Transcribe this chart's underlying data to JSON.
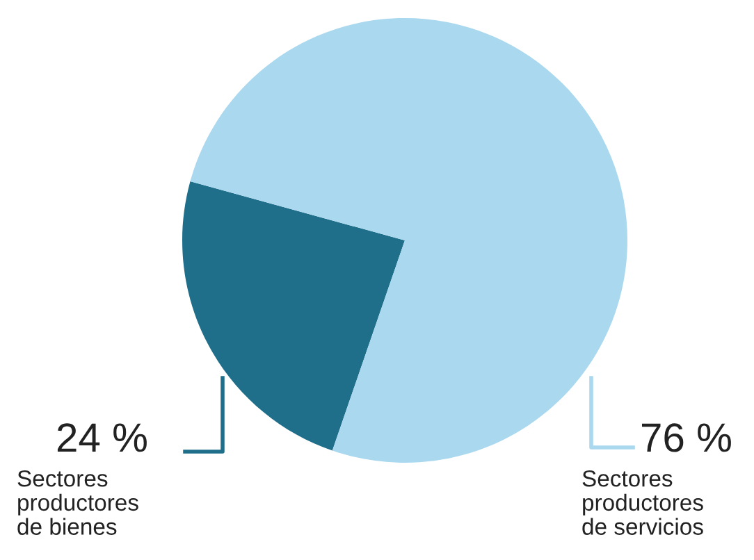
{
  "chart_data": {
    "type": "pie",
    "categories": [
      "Sectores productores de bienes",
      "Sectores productores de servicios"
    ],
    "values": [
      24,
      76
    ],
    "colors": [
      "#1f6f8b",
      "#a9d8ef"
    ],
    "value_labels": [
      "24 %",
      "76 %"
    ],
    "legend": false
  }
}
